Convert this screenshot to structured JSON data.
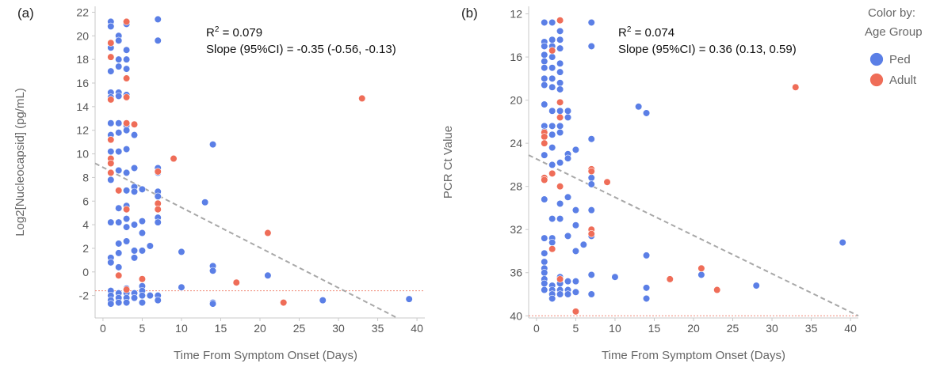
{
  "legend": {
    "title_line1": "Color by:",
    "title_line2": "Age Group",
    "items": [
      {
        "label": "Ped",
        "color": "#5b7fe6"
      },
      {
        "label": "Adult",
        "color": "#ef6d58"
      }
    ]
  },
  "chart_data": [
    {
      "type": "scatter",
      "panel_label": "(a)",
      "xlabel": "Time From Symptom Onset (Days)",
      "ylabel": "Log2[Nucleocapsid] (pg/mL)",
      "xlim": [
        -1,
        41
      ],
      "ylim": [
        -3.9,
        22.5
      ],
      "y_inverted": false,
      "xticks": [
        0,
        5,
        10,
        15,
        20,
        25,
        30,
        35,
        40
      ],
      "yticks": [
        -2,
        0,
        2,
        4,
        6,
        8,
        10,
        12,
        14,
        16,
        18,
        20,
        22
      ],
      "ytick_labels": [
        "-2",
        "0",
        "2",
        "4",
        "6",
        "8",
        "10",
        "12",
        "14",
        "16",
        "18",
        "20",
        "22"
      ],
      "annotations": {
        "r2_prefix": "R",
        "r2_value": " = 0.079",
        "slope": "Slope (95%CI) = -0.35 (-0.56, -0.13)"
      },
      "trend_line": {
        "x": [
          -1,
          37.5
        ],
        "y": [
          9.2,
          -3.9
        ]
      },
      "threshold_y": -1.6,
      "series": [
        {
          "name": "Ped",
          "color": "#5b7fe6",
          "points": [
            [
              1,
              21.2
            ],
            [
              1,
              20.8
            ],
            [
              1,
              19
            ],
            [
              1,
              17
            ],
            [
              1,
              15.2
            ],
            [
              1,
              14.8
            ],
            [
              1,
              12.6
            ],
            [
              1,
              11.6
            ],
            [
              1,
              10.2
            ],
            [
              1,
              9.2
            ],
            [
              1,
              8.4
            ],
            [
              1,
              7.8
            ],
            [
              1,
              4.2
            ],
            [
              1,
              1.2
            ],
            [
              1,
              0.8
            ],
            [
              1,
              -1.6
            ],
            [
              1,
              -2
            ],
            [
              1,
              -2.4
            ],
            [
              1,
              -2.7
            ],
            [
              2,
              20
            ],
            [
              2,
              19.6
            ],
            [
              2,
              18
            ],
            [
              2,
              17.4
            ],
            [
              2,
              15.2
            ],
            [
              2,
              14.9
            ],
            [
              2,
              12.6
            ],
            [
              2,
              11.8
            ],
            [
              2,
              10.2
            ],
            [
              2,
              8.6
            ],
            [
              2,
              5.4
            ],
            [
              2,
              4.2
            ],
            [
              2,
              2.4
            ],
            [
              2,
              1.6
            ],
            [
              2,
              0.4
            ],
            [
              2,
              -1.8
            ],
            [
              2,
              -2.2
            ],
            [
              2,
              -2.6
            ],
            [
              3,
              21
            ],
            [
              3,
              18.8
            ],
            [
              3,
              18
            ],
            [
              3,
              17.2
            ],
            [
              3,
              15
            ],
            [
              3,
              12.4
            ],
            [
              3,
              12
            ],
            [
              3,
              10.4
            ],
            [
              3,
              8.4
            ],
            [
              3,
              6.9
            ],
            [
              3,
              5.6
            ],
            [
              3,
              4.5
            ],
            [
              3,
              3.8
            ],
            [
              3,
              2.6
            ],
            [
              3,
              -1.4
            ],
            [
              3,
              -1.8
            ],
            [
              3,
              -2.2
            ],
            [
              3,
              -2.6
            ],
            [
              4,
              11.6
            ],
            [
              4,
              8.8
            ],
            [
              4,
              7.2
            ],
            [
              4,
              6.8
            ],
            [
              4,
              4
            ],
            [
              4,
              1.8
            ],
            [
              4,
              1.2
            ],
            [
              4,
              -1.8
            ],
            [
              4,
              -2.2
            ],
            [
              5,
              7
            ],
            [
              5,
              4.3
            ],
            [
              5,
              3.3
            ],
            [
              5,
              1.8
            ],
            [
              5,
              -1.2
            ],
            [
              5,
              -1.6
            ],
            [
              5,
              -2
            ],
            [
              5,
              -2.6
            ],
            [
              6,
              2.2
            ],
            [
              6,
              -2
            ],
            [
              7,
              21.4
            ],
            [
              7,
              19.6
            ],
            [
              7,
              8.8
            ],
            [
              7,
              8.4
            ],
            [
              7,
              6.8
            ],
            [
              7,
              6.4
            ],
            [
              7,
              4.6
            ],
            [
              7,
              4.2
            ],
            [
              7,
              -2
            ],
            [
              7,
              -2.4
            ],
            [
              10,
              1.7
            ],
            [
              10,
              -1.3
            ],
            [
              13,
              5.9
            ],
            [
              14,
              10.8
            ],
            [
              14,
              0.5
            ],
            [
              14,
              0.1
            ],
            [
              14,
              -2.6
            ],
            [
              14,
              -2.7
            ],
            [
              21,
              -0.3
            ],
            [
              28,
              -2.4
            ],
            [
              39,
              -2.3
            ]
          ]
        },
        {
          "name": "Adult",
          "color": "#ef6d58",
          "points": [
            [
              1,
              19.4
            ],
            [
              1,
              18.2
            ],
            [
              1,
              14.6
            ],
            [
              1,
              11.2
            ],
            [
              1,
              9.6
            ],
            [
              1,
              9.2
            ],
            [
              1,
              8.4
            ],
            [
              2,
              -0.3
            ],
            [
              2,
              6.9
            ],
            [
              3,
              21.2
            ],
            [
              3,
              16.4
            ],
            [
              3,
              14.8
            ],
            [
              3,
              12.6
            ],
            [
              3,
              5.3
            ],
            [
              3,
              -1.5
            ],
            [
              4,
              12.5
            ],
            [
              5,
              -0.6
            ],
            [
              7,
              5.8
            ],
            [
              7,
              5.3
            ],
            [
              7,
              8.5
            ],
            [
              9,
              9.6
            ],
            [
              17,
              -0.9
            ],
            [
              21,
              3.3
            ],
            [
              23,
              -2.6
            ],
            [
              33,
              14.7
            ]
          ]
        }
      ]
    },
    {
      "type": "scatter",
      "panel_label": "(b)",
      "xlabel": "Time From Symptom Onset (Days)",
      "ylabel": "PCR Ct Value",
      "xlim": [
        -1,
        41
      ],
      "ylim": [
        11.3,
        40.2
      ],
      "y_inverted": true,
      "xticks": [
        0,
        5,
        10,
        15,
        20,
        25,
        30,
        35,
        40
      ],
      "yticks": [
        12,
        16,
        20,
        24,
        28,
        32,
        36,
        40
      ],
      "ytick_labels": [
        "12",
        "16",
        "20",
        "24",
        "28",
        "32",
        "36",
        "40"
      ],
      "annotations": {
        "r2_prefix": "R",
        "r2_value": " = 0.074",
        "slope": "Slope (95%CI) = 0.36 (0.13, 0.59)"
      },
      "trend_line": {
        "x": [
          -1,
          41
        ],
        "y": [
          25.1,
          40.0
        ]
      },
      "threshold_y": 40,
      "series": [
        {
          "name": "Ped",
          "color": "#5b7fe6",
          "points": [
            [
              1,
              12.8
            ],
            [
              1,
              14.6
            ],
            [
              1,
              15
            ],
            [
              1,
              15.8
            ],
            [
              1,
              16.4
            ],
            [
              1,
              17
            ],
            [
              1,
              18
            ],
            [
              1,
              18.6
            ],
            [
              1,
              20.4
            ],
            [
              1,
              22.4
            ],
            [
              1,
              22.9
            ],
            [
              1,
              25.1
            ],
            [
              1,
              29.2
            ],
            [
              1,
              32.8
            ],
            [
              1,
              34.2
            ],
            [
              1,
              35
            ],
            [
              1,
              35.6
            ],
            [
              1,
              36
            ],
            [
              1,
              36.6
            ],
            [
              1,
              37
            ],
            [
              1,
              37.6
            ],
            [
              2,
              12.8
            ],
            [
              2,
              14.4
            ],
            [
              2,
              15
            ],
            [
              2,
              16
            ],
            [
              2,
              17
            ],
            [
              2,
              18
            ],
            [
              2,
              18.8
            ],
            [
              2,
              21
            ],
            [
              2,
              22.4
            ],
            [
              2,
              23.2
            ],
            [
              2,
              24.4
            ],
            [
              2,
              26
            ],
            [
              2,
              31
            ],
            [
              2,
              32.8
            ],
            [
              2,
              33.2
            ],
            [
              2,
              37.2
            ],
            [
              2,
              37.6
            ],
            [
              2,
              38
            ],
            [
              2,
              38.4
            ],
            [
              3,
              13.6
            ],
            [
              3,
              14.4
            ],
            [
              3,
              15.2
            ],
            [
              3,
              16.6
            ],
            [
              3,
              17.4
            ],
            [
              3,
              18.4
            ],
            [
              3,
              19
            ],
            [
              3,
              21
            ],
            [
              3,
              22.4
            ],
            [
              3,
              23
            ],
            [
              3,
              25.8
            ],
            [
              3,
              29.6
            ],
            [
              3,
              31
            ],
            [
              3,
              36.4
            ],
            [
              3,
              37
            ],
            [
              3,
              37.6
            ],
            [
              3,
              38
            ],
            [
              4,
              21
            ],
            [
              4,
              21.6
            ],
            [
              4,
              25
            ],
            [
              4,
              25.4
            ],
            [
              4,
              29
            ],
            [
              4,
              32.6
            ],
            [
              4,
              36.8
            ],
            [
              4,
              37.6
            ],
            [
              4,
              38
            ],
            [
              5,
              24.6
            ],
            [
              5,
              30.2
            ],
            [
              5,
              31.6
            ],
            [
              5,
              34
            ],
            [
              5,
              36.8
            ],
            [
              5,
              37.8
            ],
            [
              6,
              33.4
            ],
            [
              7,
              12.8
            ],
            [
              7,
              15
            ],
            [
              7,
              23.6
            ],
            [
              7,
              27.2
            ],
            [
              7,
              27.8
            ],
            [
              7,
              30.2
            ],
            [
              7,
              32.6
            ],
            [
              7,
              36.2
            ],
            [
              7,
              38
            ],
            [
              10,
              36.4
            ],
            [
              13,
              20.6
            ],
            [
              14,
              21.2
            ],
            [
              14,
              34.4
            ],
            [
              14,
              37.4
            ],
            [
              14,
              38.4
            ],
            [
              21,
              36.2
            ],
            [
              28,
              37.2
            ],
            [
              39,
              33.2
            ]
          ]
        },
        {
          "name": "Adult",
          "color": "#ef6d58",
          "points": [
            [
              1,
              23
            ],
            [
              1,
              23.4
            ],
            [
              1,
              24
            ],
            [
              1,
              27.2
            ],
            [
              1,
              27.4
            ],
            [
              2,
              15.4
            ],
            [
              2,
              26.8
            ],
            [
              2,
              33.8
            ],
            [
              3,
              12.6
            ],
            [
              3,
              20.2
            ],
            [
              3,
              21.6
            ],
            [
              3,
              28
            ],
            [
              3,
              36.6
            ],
            [
              5,
              39.6
            ],
            [
              7,
              26.4
            ],
            [
              7,
              26.6
            ],
            [
              7,
              32
            ],
            [
              7,
              32.4
            ],
            [
              9,
              27.6
            ],
            [
              17,
              36.6
            ],
            [
              21,
              35.6
            ],
            [
              23,
              37.6
            ],
            [
              33,
              18.8
            ]
          ]
        }
      ]
    }
  ]
}
